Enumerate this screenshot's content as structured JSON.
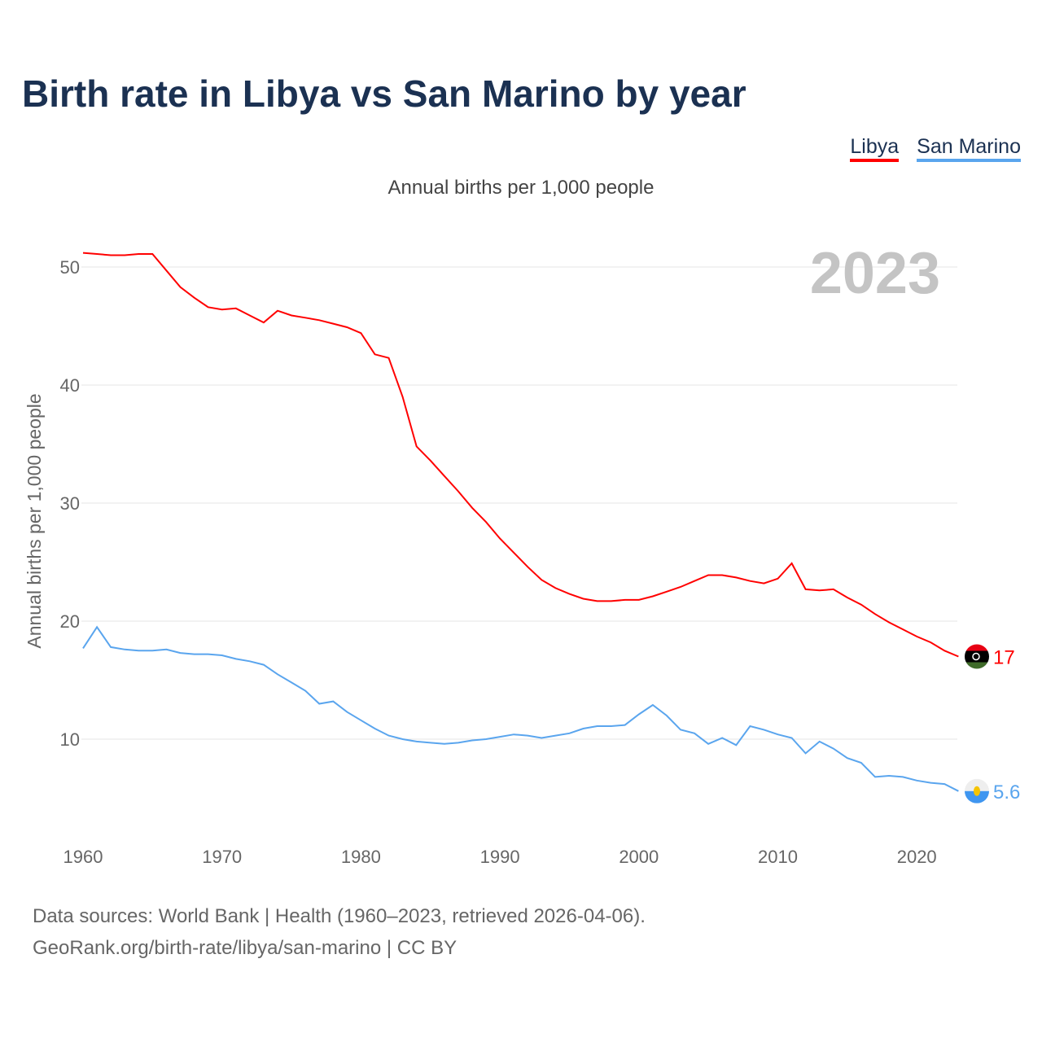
{
  "title": "Birth rate in Libya vs San Marino by year",
  "footer": {
    "line1": "Data sources: World Bank | Health (1960–2023, retrieved 2026-04-06).",
    "line2": "GeoRank.org/birth-rate/libya/san-marino | CC BY"
  },
  "chart_data": {
    "type": "line",
    "title": "Birth rate in Libya vs San Marino by year",
    "subtitle": "Annual births per 1,000 people",
    "ylabel": "Annual births per 1,000 people",
    "xlabel": "",
    "year_label": "2023",
    "xlim": [
      1960,
      2023
    ],
    "ylim": [
      0,
      52
    ],
    "xticks": [
      1960,
      1970,
      1980,
      1990,
      2000,
      2010,
      2020
    ],
    "yticks": [
      10,
      20,
      30,
      40,
      50
    ],
    "grid": true,
    "legend": "top-right",
    "x": [
      1960,
      1961,
      1962,
      1963,
      1964,
      1965,
      1966,
      1967,
      1968,
      1969,
      1970,
      1971,
      1972,
      1973,
      1974,
      1975,
      1976,
      1977,
      1978,
      1979,
      1980,
      1981,
      1982,
      1983,
      1984,
      1985,
      1986,
      1987,
      1988,
      1989,
      1990,
      1991,
      1992,
      1993,
      1994,
      1995,
      1996,
      1997,
      1998,
      1999,
      2000,
      2001,
      2002,
      2003,
      2004,
      2005,
      2006,
      2007,
      2008,
      2009,
      2010,
      2011,
      2012,
      2013,
      2014,
      2015,
      2016,
      2017,
      2018,
      2019,
      2020,
      2021,
      2022,
      2023
    ],
    "series": [
      {
        "name": "Libya",
        "color": "#ff0000",
        "end_label": "17",
        "values": [
          51.2,
          51.1,
          51.0,
          51.0,
          51.1,
          51.1,
          49.7,
          48.3,
          47.4,
          46.6,
          46.4,
          46.5,
          45.9,
          45.3,
          46.3,
          45.9,
          45.7,
          45.5,
          45.2,
          44.9,
          44.4,
          42.6,
          42.3,
          39.0,
          34.8,
          33.6,
          32.3,
          31.0,
          29.6,
          28.4,
          27.0,
          25.8,
          24.6,
          23.5,
          22.8,
          22.3,
          21.9,
          21.7,
          21.7,
          21.8,
          21.8,
          22.1,
          22.5,
          22.9,
          23.4,
          23.9,
          23.9,
          23.7,
          23.4,
          23.2,
          23.6,
          24.9,
          22.7,
          22.6,
          22.7,
          22.0,
          21.4,
          20.6,
          19.9,
          19.3,
          18.7,
          18.2,
          17.5,
          17.0
        ]
      },
      {
        "name": "San Marino",
        "color": "#5aa5ee",
        "end_label": "5.6",
        "values": [
          17.7,
          19.5,
          17.8,
          17.6,
          17.5,
          17.5,
          17.6,
          17.3,
          17.2,
          17.2,
          17.1,
          16.8,
          16.6,
          16.3,
          15.5,
          14.8,
          14.1,
          13.0,
          13.2,
          12.3,
          11.6,
          10.9,
          10.3,
          10.0,
          9.8,
          9.7,
          9.6,
          9.7,
          9.9,
          10.0,
          10.2,
          10.4,
          10.3,
          10.1,
          10.3,
          10.5,
          10.9,
          11.1,
          11.1,
          11.2,
          12.1,
          12.9,
          12.0,
          10.8,
          10.5,
          9.6,
          10.1,
          9.5,
          11.1,
          10.8,
          10.4,
          10.1,
          8.8,
          9.8,
          9.2,
          8.4,
          8.0,
          6.8,
          6.9,
          6.8,
          6.5,
          6.3,
          6.2,
          5.6
        ]
      }
    ]
  }
}
